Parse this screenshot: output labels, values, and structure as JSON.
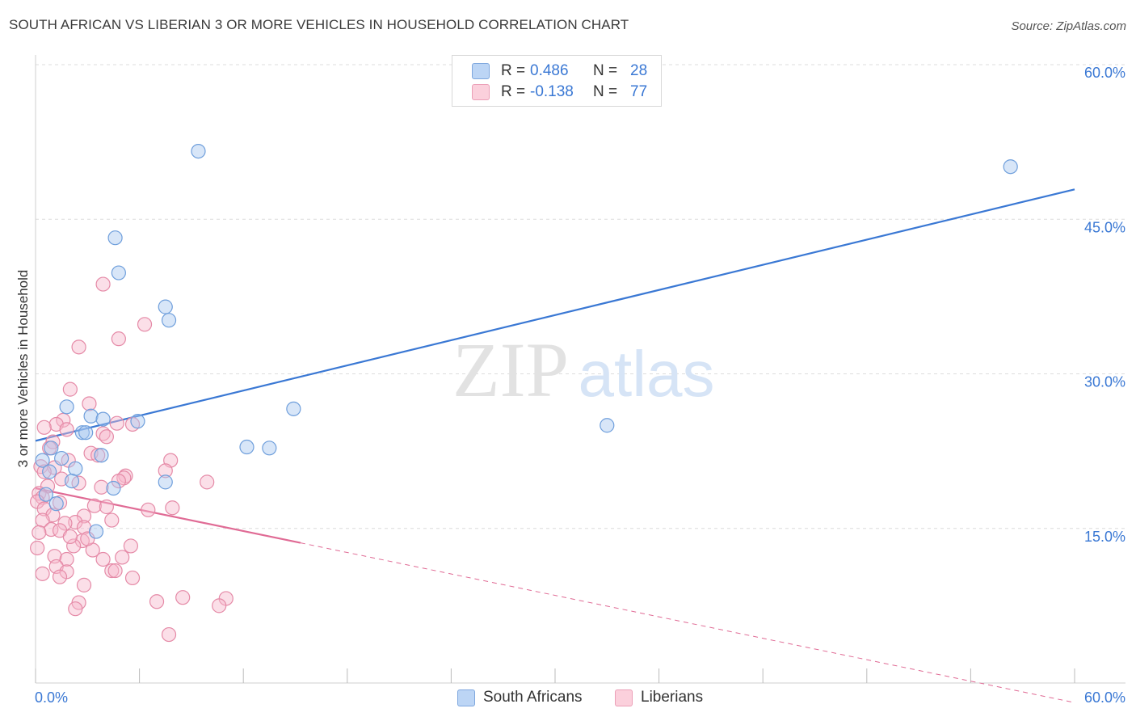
{
  "title": "SOUTH AFRICAN VS LIBERIAN 3 OR MORE VEHICLES IN HOUSEHOLD CORRELATION CHART",
  "source": "Source: ZipAtlas.com",
  "watermark": {
    "zip": "ZIP",
    "atlas": "atlas"
  },
  "legend": {
    "rows": [
      {
        "r_label": "R =",
        "r_value": "0.486",
        "n_label": "N =",
        "n_value": "28",
        "color": "#a9c8f0"
      },
      {
        "r_label": "R =",
        "r_value": "-0.138",
        "n_label": "N =",
        "n_value": "77",
        "color": "#f6b9cb"
      }
    ]
  },
  "bottom_legend": {
    "south_africans": "South Africans",
    "liberians": "Liberians"
  },
  "chart_data": {
    "type": "scatter",
    "title": "SOUTH AFRICAN VS LIBERIAN 3 OR MORE VEHICLES IN HOUSEHOLD CORRELATION CHART",
    "xlabel": "",
    "ylabel": "3 or more Vehicles in Household",
    "xlim": [
      0,
      60
    ],
    "ylim": [
      0,
      60
    ],
    "x_tick_labels": {
      "min": "0.0%",
      "max": "60.0%"
    },
    "y_tick_labels": [
      "15.0%",
      "30.0%",
      "45.0%",
      "60.0%"
    ],
    "y_ticks": [
      15,
      30,
      45,
      60
    ],
    "grid": true,
    "series": [
      {
        "name": "South Africans",
        "color": "#a9c8f0",
        "stroke": "#6f9fdc",
        "trend": {
          "x": [
            0,
            60
          ],
          "y": [
            23.5,
            47.9
          ],
          "dashed_to": null,
          "color": "#3a78d4"
        },
        "points": [
          [
            9.4,
            51.6
          ],
          [
            56.3,
            50.1
          ],
          [
            4.6,
            43.2
          ],
          [
            4.8,
            39.8
          ],
          [
            7.5,
            36.5
          ],
          [
            7.7,
            35.2
          ],
          [
            14.9,
            26.6
          ],
          [
            33.0,
            25.0
          ],
          [
            1.8,
            26.8
          ],
          [
            3.2,
            25.9
          ],
          [
            3.9,
            25.6
          ],
          [
            5.9,
            25.4
          ],
          [
            2.7,
            24.3
          ],
          [
            2.9,
            24.3
          ],
          [
            0.9,
            22.8
          ],
          [
            12.2,
            22.9
          ],
          [
            13.5,
            22.8
          ],
          [
            3.8,
            22.1
          ],
          [
            1.5,
            21.8
          ],
          [
            0.4,
            21.6
          ],
          [
            0.8,
            20.5
          ],
          [
            2.3,
            20.8
          ],
          [
            2.1,
            19.6
          ],
          [
            7.5,
            19.5
          ],
          [
            4.5,
            18.9
          ],
          [
            0.6,
            18.3
          ],
          [
            1.2,
            17.4
          ],
          [
            3.5,
            14.7
          ]
        ]
      },
      {
        "name": "Liberians",
        "color": "#f6b9cb",
        "stroke": "#e58aa7",
        "trend": {
          "x": [
            0,
            15.3
          ],
          "y": [
            18.9,
            13.6
          ],
          "dashed_to": [
            60,
            -1.9
          ],
          "color": "#e06b95"
        },
        "points": [
          [
            3.9,
            38.7
          ],
          [
            6.3,
            34.8
          ],
          [
            4.8,
            33.4
          ],
          [
            2.5,
            32.6
          ],
          [
            2.0,
            28.5
          ],
          [
            3.1,
            27.1
          ],
          [
            1.6,
            25.5
          ],
          [
            4.7,
            25.2
          ],
          [
            5.6,
            25.1
          ],
          [
            1.2,
            25.1
          ],
          [
            0.5,
            24.8
          ],
          [
            1.8,
            24.6
          ],
          [
            3.9,
            24.2
          ],
          [
            4.1,
            23.9
          ],
          [
            1.0,
            23.4
          ],
          [
            0.8,
            22.8
          ],
          [
            3.2,
            22.3
          ],
          [
            3.6,
            22.1
          ],
          [
            1.9,
            21.6
          ],
          [
            7.8,
            21.6
          ],
          [
            0.3,
            21.0
          ],
          [
            1.1,
            20.9
          ],
          [
            0.5,
            20.5
          ],
          [
            7.5,
            20.6
          ],
          [
            5.2,
            20.1
          ],
          [
            5.1,
            19.9
          ],
          [
            4.8,
            19.6
          ],
          [
            9.9,
            19.5
          ],
          [
            2.5,
            19.4
          ],
          [
            0.7,
            19.1
          ],
          [
            3.8,
            19.0
          ],
          [
            0.2,
            18.4
          ],
          [
            0.4,
            18.0
          ],
          [
            0.1,
            17.6
          ],
          [
            1.4,
            17.5
          ],
          [
            3.4,
            17.2
          ],
          [
            4.1,
            17.1
          ],
          [
            7.9,
            17.0
          ],
          [
            0.5,
            16.9
          ],
          [
            1.0,
            16.3
          ],
          [
            2.8,
            16.2
          ],
          [
            0.4,
            15.8
          ],
          [
            4.4,
            15.8
          ],
          [
            2.3,
            15.6
          ],
          [
            1.7,
            15.5
          ],
          [
            2.8,
            15.1
          ],
          [
            0.9,
            14.9
          ],
          [
            1.4,
            14.8
          ],
          [
            0.2,
            14.6
          ],
          [
            2.7,
            13.8
          ],
          [
            5.5,
            13.3
          ],
          [
            2.2,
            13.3
          ],
          [
            0.1,
            13.1
          ],
          [
            3.3,
            12.9
          ],
          [
            1.1,
            12.3
          ],
          [
            5.0,
            12.2
          ],
          [
            3.9,
            12.0
          ],
          [
            1.8,
            12.0
          ],
          [
            1.2,
            11.3
          ],
          [
            1.8,
            10.8
          ],
          [
            4.4,
            10.9
          ],
          [
            4.6,
            10.9
          ],
          [
            0.4,
            10.6
          ],
          [
            1.4,
            10.3
          ],
          [
            5.6,
            10.2
          ],
          [
            2.8,
            9.5
          ],
          [
            2.5,
            7.8
          ],
          [
            7.0,
            7.9
          ],
          [
            8.5,
            8.3
          ],
          [
            11.0,
            8.2
          ],
          [
            10.6,
            7.5
          ],
          [
            2.3,
            7.2
          ],
          [
            7.7,
            4.7
          ],
          [
            2.0,
            14.2
          ],
          [
            6.5,
            16.8
          ],
          [
            3.0,
            14.0
          ],
          [
            1.5,
            19.8
          ]
        ]
      }
    ]
  }
}
